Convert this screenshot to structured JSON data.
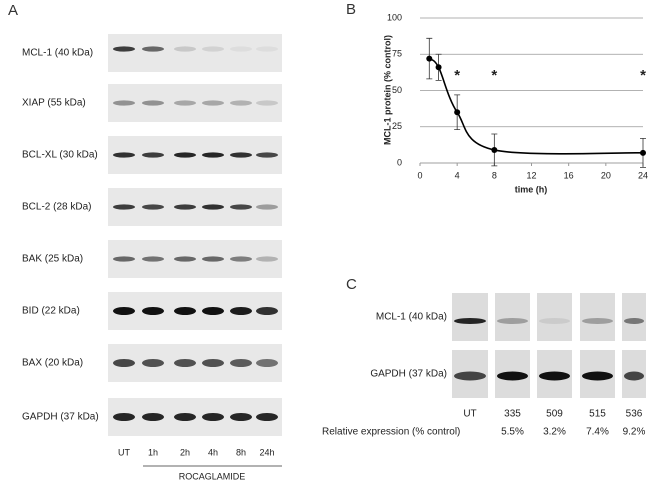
{
  "panel_a": {
    "label": "A",
    "rows": [
      "MCL-1 (40 kDa)",
      "XIAP (55 kDa)",
      "BCL-XL (30 kDa)",
      "BCL-2 (28 kDa)",
      "BAK (25 kDa)",
      "BID (22 kDa)",
      "BAX (20 kDa)",
      "GAPDH (37 kDa)"
    ],
    "lanes": [
      "UT",
      "1h",
      "2h",
      "4h",
      "8h",
      "24h"
    ],
    "treatment": "ROCAGLAMIDE"
  },
  "chart_data": {
    "type": "line",
    "panel_label": "B",
    "x_label": "time (h)",
    "y_label": "MCL-1 protein (% control)",
    "x": [
      1,
      2,
      4,
      8,
      24
    ],
    "series": [
      {
        "color": "#000000",
        "values": [
          72,
          66,
          35,
          9,
          7
        ],
        "errors": [
          14,
          9,
          12,
          11,
          10
        ]
      }
    ],
    "annotations": [
      {
        "text": "*",
        "x": 4
      },
      {
        "text": "*",
        "x": 8
      },
      {
        "text": "*",
        "x": 24
      }
    ],
    "xlim": [
      0,
      24
    ],
    "xticks": [
      0,
      4,
      8,
      12,
      16,
      20,
      24
    ],
    "ylim": [
      0,
      100
    ],
    "yticks": [
      0,
      25,
      50,
      75,
      100
    ],
    "grid": true
  },
  "panel_c": {
    "label": "C",
    "rows": [
      "MCL-1 (40 kDa)",
      "GAPDH (37 kDa)"
    ],
    "samples": [
      "UT",
      "335",
      "509",
      "515",
      "536"
    ],
    "expression_label": "Relative expression (% control)",
    "expression": [
      "5.5%",
      "3.2%",
      "7.4%",
      "9.2%"
    ]
  }
}
